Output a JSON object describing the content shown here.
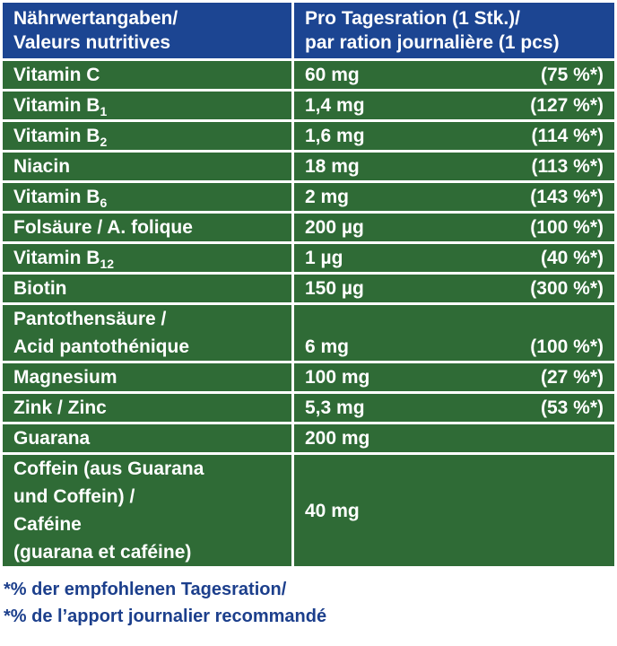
{
  "header": {
    "nutrient": [
      "Nährwertangaben/",
      "Valeurs nutritives"
    ],
    "amount": [
      "Pro Tagesration (1 Stk.)/",
      "par ration journalière (1 pcs)"
    ]
  },
  "rows": [
    {
      "name": [
        {
          "text": "Vitamin C"
        }
      ],
      "amount": "60 mg",
      "percent": "(75 %*)"
    },
    {
      "name": [
        {
          "text": "Vitamin B",
          "sub": "1"
        }
      ],
      "amount": "1,4 mg",
      "percent": "(127 %*)"
    },
    {
      "name": [
        {
          "text": "Vitamin B",
          "sub": "2"
        }
      ],
      "amount": "1,6 mg",
      "percent": "(114 %*)"
    },
    {
      "name": [
        {
          "text": "Niacin"
        }
      ],
      "amount": "18 mg",
      "percent": "(113 %*)"
    },
    {
      "name": [
        {
          "text": "Vitamin B",
          "sub": "6"
        }
      ],
      "amount": "2 mg",
      "percent": "(143 %*)"
    },
    {
      "name": [
        {
          "text": "Folsäure / A. folique"
        }
      ],
      "amount": "200 µg",
      "percent": "(100 %*)"
    },
    {
      "name": [
        {
          "text": "Vitamin B",
          "sub": "12"
        }
      ],
      "amount": "1 µg",
      "percent": "(40 %*)"
    },
    {
      "name": [
        {
          "text": "Biotin"
        }
      ],
      "amount": "150 µg",
      "percent": "(300 %*)"
    },
    {
      "name": [
        {
          "text": "Pantothensäure /"
        },
        {
          "text": "Acid pantothénique"
        }
      ],
      "amount": "6 mg",
      "percent": "(100 %*)"
    },
    {
      "name": [
        {
          "text": "Magnesium"
        }
      ],
      "amount": "100 mg",
      "percent": "(27 %*)"
    },
    {
      "name": [
        {
          "text": "Zink / Zinc"
        }
      ],
      "amount": "5,3 mg",
      "percent": "(53 %*)"
    },
    {
      "name": [
        {
          "text": "Guarana"
        }
      ],
      "amount": "200 mg"
    },
    {
      "name": [
        {
          "text": "Coffein (aus Guarana"
        },
        {
          "text": "und Coffein) /"
        },
        {
          "text": "Caféine"
        },
        {
          "text": "(guarana et caféine)"
        }
      ],
      "amount": "40 mg"
    }
  ],
  "footer": [
    "*% der empfohlenen Tagesration/",
    "*% de l’apport journalier recommandé"
  ]
}
